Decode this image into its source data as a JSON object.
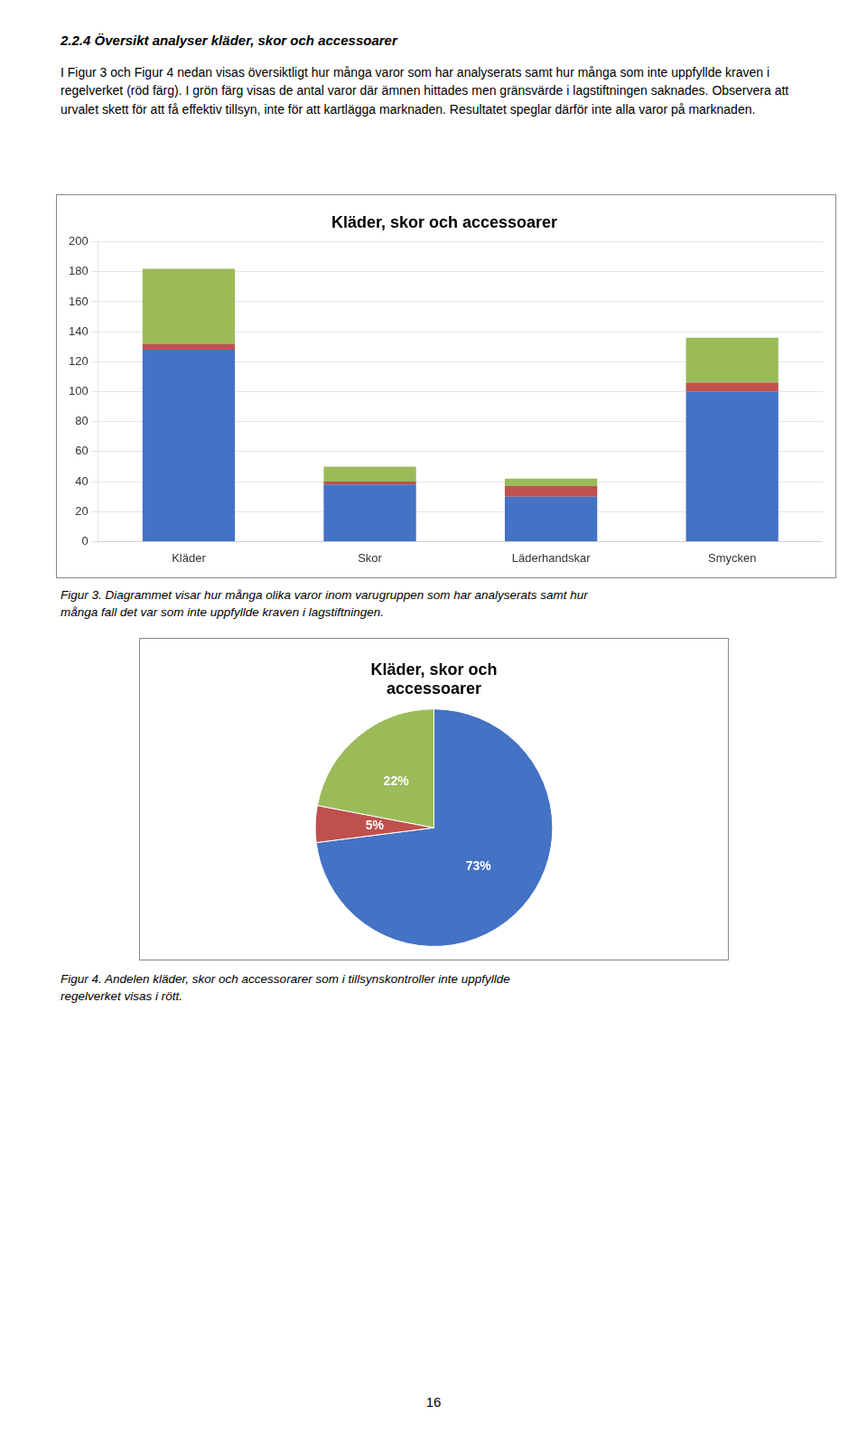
{
  "header_text": "2.2.4   Översikt analyser kläder, skor och accessoarer",
  "body_text": "I Figur 3 och Figur 4 nedan visas översiktligt hur många varor som har analyserats samt hur många som inte uppfyllde kraven i regelverket (röd färg). I grön färg visas de antal varor där ämnen hittades men gränsvärde i lagstiftningen saknades. Observera att urvalet skett för att få effektiv tillsyn, inte för att kartlägga marknaden. Resultatet speglar därför inte alla varor på marknaden.",
  "page_number": "16",
  "chart_data": [
    {
      "type": "bar",
      "title": "Kläder, skor och accessoarer",
      "caption": "Figur 3. Diagrammet visar hur många olika varor inom varugruppen som har analyserats samt hur\nmånga fall det var som inte uppfyllde kraven i lagstiftningen.",
      "categories": [
        "Kläder",
        "Skor",
        "Läderhandskar",
        "Smycken"
      ],
      "series": [
        {
          "color": "#4472C4",
          "values": [
            128,
            38,
            30,
            100
          ]
        },
        {
          "color": "#C0504D",
          "values": [
            4,
            2,
            7,
            6
          ]
        },
        {
          "color": "#9BBB59",
          "values": [
            50,
            10,
            5,
            30
          ]
        }
      ],
      "stacked": true,
      "ylim": [
        0,
        200
      ],
      "yticks": [
        0,
        20,
        40,
        60,
        80,
        100,
        120,
        140,
        160,
        180,
        200
      ],
      "grid": true
    },
    {
      "type": "pie",
      "title": "Kläder, skor och\naccessoarer",
      "caption": "Figur 4. Andelen kläder, skor och accessorarer som i tillsynskontroller inte uppfyllde\nregelverket visas i rött.",
      "values": [
        73,
        5,
        22
      ],
      "value_labels": [
        "73%",
        "5%",
        "22%"
      ],
      "colors": [
        "#4472C4",
        "#C0504D",
        "#9BBB59"
      ],
      "data_labels": true
    }
  ]
}
